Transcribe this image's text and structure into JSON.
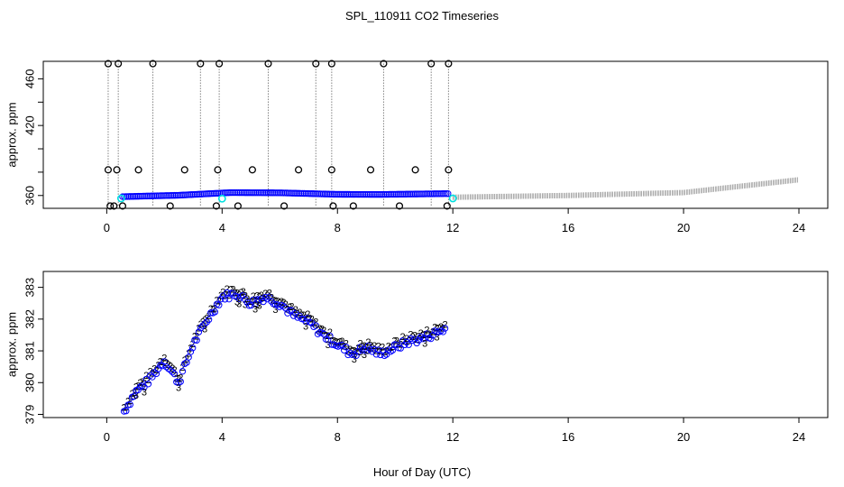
{
  "title": "SPL_110911  CO2 Timeseries",
  "xlabel": "Hour of Day (UTC)",
  "colors": {
    "axis": "#000000",
    "marker_black": "#000000",
    "marker_blue": "#0000ff",
    "marker_green": "#00cc00",
    "marker_cyan": "#00e0e0",
    "background": "#ffffff"
  },
  "chart_data": [
    {
      "type": "scatter",
      "name": "top-panel",
      "ylabel": "approx. ppm",
      "xlim": [
        -2.2,
        25
      ],
      "ylim": [
        349,
        475
      ],
      "xticks": [
        0,
        4,
        8,
        12,
        16,
        20,
        24
      ],
      "xtick_labels": [
        "0",
        "4",
        "8",
        "12",
        "16",
        "20",
        "24"
      ],
      "yticks": [
        360,
        380,
        400,
        420,
        440,
        460
      ],
      "ytick_labels": [
        "360",
        "",
        "",
        "420",
        "",
        "460"
      ],
      "spikes_top": [
        0.05,
        0.4,
        1.6,
        3.25,
        3.9,
        5.6,
        7.25,
        7.8,
        9.6,
        11.25,
        11.85
      ],
      "spikes_mid": [
        0.05,
        0.35,
        1.1,
        2.7,
        3.85,
        5.05,
        6.65,
        7.8,
        9.15,
        10.7,
        11.85
      ],
      "spikes_low": [
        0.12,
        0.25,
        0.55,
        2.2,
        3.8,
        4.55,
        6.15,
        7.85,
        8.55,
        10.15,
        11.8
      ],
      "baseline_start": [
        0.55,
        359.0
      ],
      "baseline_points": [
        [
          0.55,
          359.0
        ],
        [
          1.5,
          359.6
        ],
        [
          2.5,
          360.2
        ],
        [
          3.5,
          361.5
        ],
        [
          4.3,
          362.5
        ],
        [
          6.0,
          362.3
        ],
        [
          8.0,
          361.0
        ],
        [
          9.5,
          360.9
        ],
        [
          11.8,
          361.6
        ]
      ],
      "cyan_points": [
        [
          0.5,
          357.5
        ],
        [
          4.0,
          357.3
        ],
        [
          12.0,
          357.5
        ]
      ],
      "tail_points": [
        [
          12.0,
          358.5
        ],
        [
          16.0,
          360.0
        ],
        [
          20.0,
          362.5
        ],
        [
          24.0,
          373.5
        ]
      ],
      "spike_high_value": 473,
      "spike_mid_value": 382,
      "spike_low_value": 351
    },
    {
      "type": "scatter",
      "name": "bottom-panel",
      "ylabel": "approx. ppm",
      "xlim": [
        -2.2,
        25
      ],
      "ylim": [
        378.9,
        383.5
      ],
      "xticks": [
        0,
        4,
        8,
        12,
        16,
        20,
        24
      ],
      "xtick_labels": [
        "0",
        "4",
        "8",
        "12",
        "16",
        "20",
        "24"
      ],
      "yticks": [
        379,
        380,
        381,
        382,
        383
      ],
      "ytick_labels": [
        "379",
        "380",
        "381",
        "382",
        "383"
      ],
      "marker_label": "3",
      "alt_marker_label": "2",
      "series_blue_trend": [
        [
          0.6,
          379.1
        ],
        [
          1.0,
          379.7
        ],
        [
          1.5,
          380.1
        ],
        [
          2.0,
          380.7
        ],
        [
          2.5,
          380.0
        ],
        [
          3.0,
          381.2
        ],
        [
          3.5,
          382.0
        ],
        [
          4.0,
          382.7
        ],
        [
          4.5,
          382.8
        ],
        [
          5.0,
          382.5
        ],
        [
          5.5,
          382.7
        ],
        [
          6.0,
          382.5
        ],
        [
          6.5,
          382.1
        ],
        [
          7.0,
          381.9
        ],
        [
          7.5,
          381.5
        ],
        [
          8.0,
          381.2
        ],
        [
          8.5,
          380.9
        ],
        [
          9.0,
          381.1
        ],
        [
          9.5,
          380.9
        ],
        [
          10.0,
          381.1
        ],
        [
          10.5,
          381.3
        ],
        [
          11.0,
          381.4
        ],
        [
          11.5,
          381.6
        ],
        [
          11.75,
          381.7
        ]
      ],
      "series_green_offset": 0.13
    }
  ]
}
